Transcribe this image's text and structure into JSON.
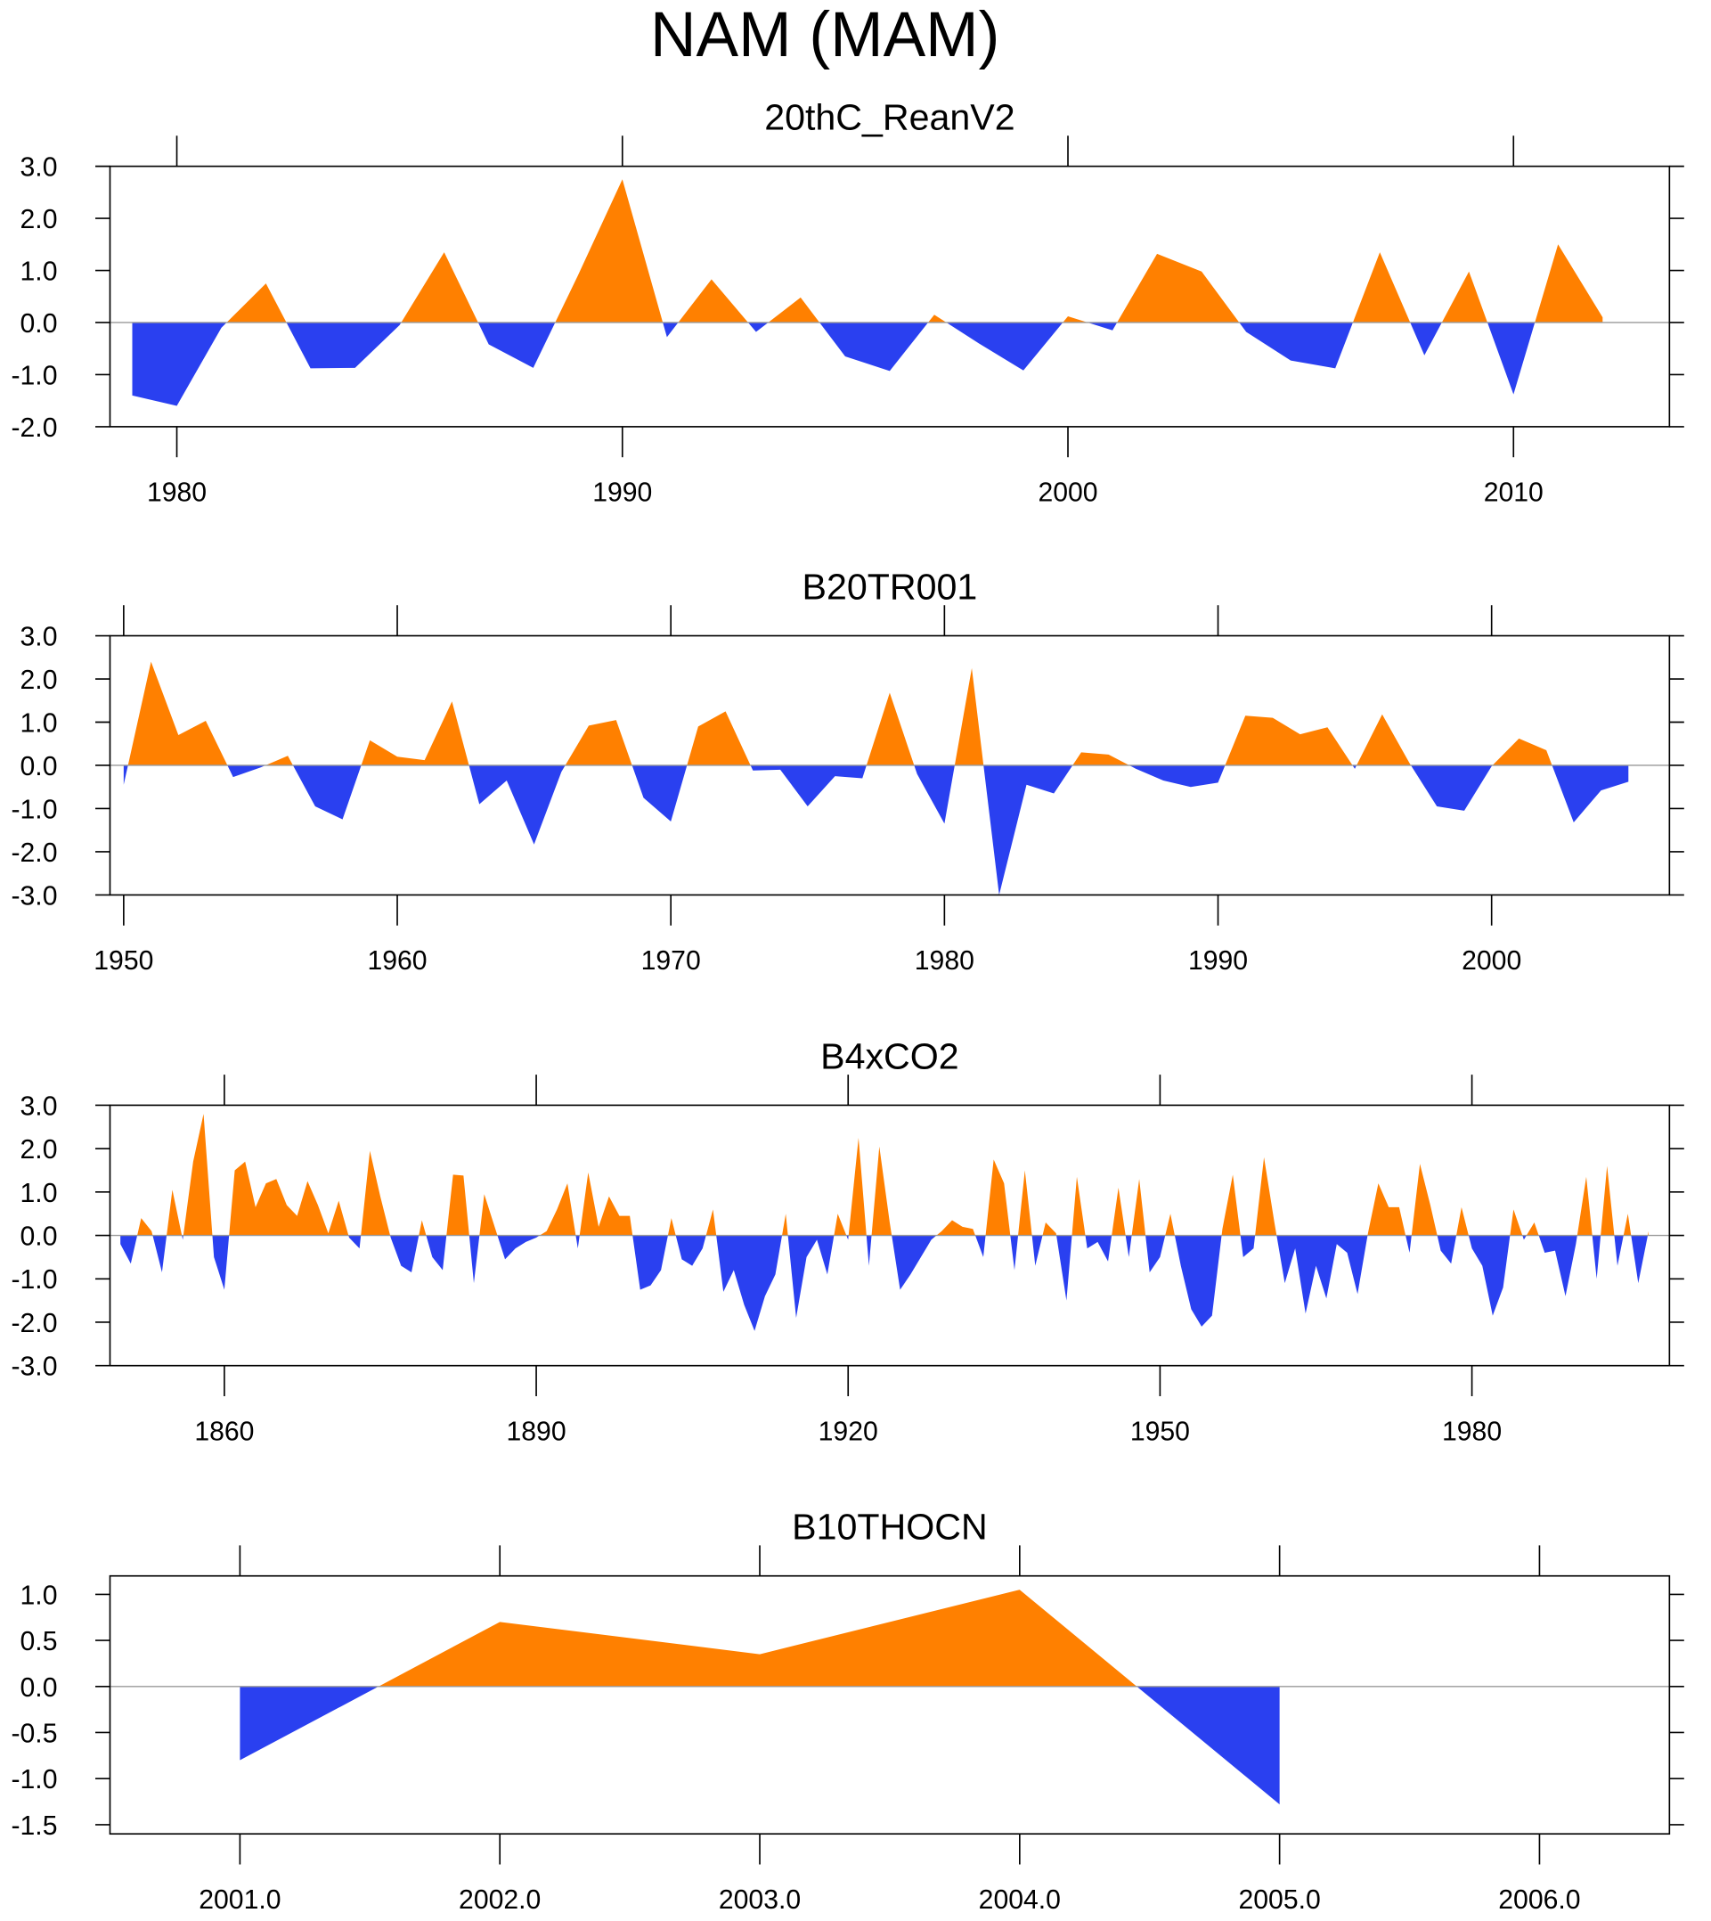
{
  "title": "NAM (MAM)",
  "chart_data": [
    {
      "type": "area",
      "title": "20thC_ReanV2",
      "positive_color": "#ff8000",
      "negative_color": "#2a40f0",
      "reference_line": 0,
      "x": [
        1979,
        1980,
        1981,
        1982,
        1983,
        1984,
        1985,
        1986,
        1987,
        1988,
        1989,
        1990,
        1991,
        1992,
        1993,
        1994,
        1995,
        1996,
        1997,
        1998,
        1999,
        2000,
        2001,
        2002,
        2003,
        2004,
        2005,
        2006,
        2007,
        2008,
        2009,
        2010,
        2011,
        2012
      ],
      "values": [
        -1.4,
        -1.6,
        -0.1,
        0.75,
        -0.88,
        -0.87,
        -0.05,
        1.35,
        -0.42,
        -0.87,
        0.9,
        2.75,
        -0.28,
        0.83,
        -0.18,
        0.48,
        -0.65,
        -0.93,
        0.15,
        -0.4,
        -0.92,
        0.12,
        -0.15,
        1.32,
        0.98,
        -0.18,
        -0.73,
        -0.88,
        1.35,
        -0.63,
        0.98,
        -1.38,
        1.5,
        0.1
      ],
      "xlim": [
        1978.5,
        2013.5
      ],
      "xticks": [
        1980,
        1990,
        2000,
        2010
      ],
      "ylim": [
        -2,
        3
      ],
      "yticks": [
        {
          "value": 3,
          "label": "3.0"
        },
        {
          "value": 2,
          "label": "2.0"
        },
        {
          "value": 1,
          "label": "1.0"
        },
        {
          "value": 0,
          "label": "0.0"
        },
        {
          "value": -1,
          "label": "-1.0"
        },
        {
          "value": -2,
          "label": "-2.0"
        }
      ]
    },
    {
      "type": "area",
      "title": "B20TR001",
      "positive_color": "#ff8000",
      "negative_color": "#2a40f0",
      "reference_line": 0,
      "x": [
        1950,
        1951,
        1952,
        1953,
        1954,
        1955,
        1956,
        1957,
        1958,
        1959,
        1960,
        1961,
        1962,
        1963,
        1964,
        1965,
        1966,
        1967,
        1968,
        1969,
        1970,
        1971,
        1972,
        1973,
        1974,
        1975,
        1976,
        1977,
        1978,
        1979,
        1980,
        1981,
        1982,
        1983,
        1984,
        1985,
        1986,
        1987,
        1988,
        1989,
        1990,
        1991,
        1992,
        1993,
        1994,
        1995,
        1996,
        1997,
        1998,
        1999,
        2000,
        2001,
        2002,
        2003,
        2004,
        2005
      ],
      "values": [
        -0.45,
        2.4,
        0.7,
        1.03,
        -0.27,
        -0.05,
        0.22,
        -0.95,
        -1.25,
        0.58,
        0.2,
        0.12,
        1.48,
        -0.9,
        -0.35,
        -1.83,
        -0.15,
        0.92,
        1.05,
        -0.75,
        -1.3,
        0.9,
        1.25,
        -0.12,
        -0.1,
        -0.95,
        -0.25,
        -0.3,
        1.68,
        -0.2,
        -1.35,
        2.25,
        -3.0,
        -0.45,
        -0.65,
        0.3,
        0.25,
        -0.08,
        -0.35,
        -0.5,
        -0.4,
        1.15,
        1.1,
        0.72,
        0.88,
        -0.08,
        1.18,
        0.05,
        -0.95,
        -1.05,
        -0.02,
        0.62,
        0.35,
        -1.32,
        -0.58,
        -0.38
      ],
      "xlim": [
        1949.5,
        2006.5
      ],
      "xticks": [
        1950,
        1960,
        1970,
        1980,
        1990,
        2000
      ],
      "ylim": [
        -3,
        3
      ],
      "yticks": [
        {
          "value": 3,
          "label": "3.0"
        },
        {
          "value": 2,
          "label": "2.0"
        },
        {
          "value": 1,
          "label": "1.0"
        },
        {
          "value": 0,
          "label": "0.0"
        },
        {
          "value": -1,
          "label": "-1.0"
        },
        {
          "value": -2,
          "label": "-2.0"
        },
        {
          "value": -3,
          "label": "-3.0"
        }
      ]
    },
    {
      "type": "area",
      "title": "B4xCO2",
      "positive_color": "#ff8000",
      "negative_color": "#2a40f0",
      "reference_line": 0,
      "x": [
        1850,
        1851,
        1852,
        1853,
        1854,
        1855,
        1856,
        1857,
        1858,
        1859,
        1860,
        1861,
        1862,
        1863,
        1864,
        1865,
        1866,
        1867,
        1868,
        1869,
        1870,
        1871,
        1872,
        1873,
        1874,
        1875,
        1876,
        1877,
        1878,
        1879,
        1880,
        1881,
        1882,
        1883,
        1884,
        1885,
        1886,
        1887,
        1888,
        1889,
        1890,
        1891,
        1892,
        1893,
        1894,
        1895,
        1896,
        1897,
        1898,
        1899,
        1900,
        1901,
        1902,
        1903,
        1904,
        1905,
        1906,
        1907,
        1908,
        1909,
        1910,
        1911,
        1912,
        1913,
        1914,
        1915,
        1916,
        1917,
        1918,
        1919,
        1920,
        1921,
        1922,
        1923,
        1924,
        1925,
        1926,
        1927,
        1928,
        1929,
        1930,
        1931,
        1932,
        1933,
        1934,
        1935,
        1936,
        1937,
        1938,
        1939,
        1940,
        1941,
        1942,
        1943,
        1944,
        1945,
        1946,
        1947,
        1948,
        1949,
        1950,
        1951,
        1952,
        1953,
        1954,
        1955,
        1956,
        1957,
        1958,
        1959,
        1960,
        1961,
        1962,
        1963,
        1964,
        1965,
        1966,
        1967,
        1968,
        1969,
        1970,
        1971,
        1972,
        1973,
        1974,
        1975,
        1976,
        1977,
        1978,
        1979,
        1980,
        1981,
        1982,
        1983,
        1984,
        1985,
        1986,
        1987,
        1988,
        1989,
        1990,
        1991,
        1992,
        1993,
        1994,
        1995,
        1996,
        1997
      ],
      "values": [
        -0.2,
        -0.65,
        0.4,
        0.1,
        -0.85,
        1.05,
        -0.1,
        1.7,
        2.8,
        -0.5,
        -1.25,
        1.5,
        1.7,
        0.65,
        1.2,
        1.3,
        0.7,
        0.45,
        1.25,
        0.7,
        0.05,
        0.8,
        -0.05,
        -0.3,
        1.95,
        0.9,
        -0.05,
        -0.7,
        -0.85,
        0.35,
        -0.5,
        -0.8,
        1.4,
        1.38,
        -1.1,
        0.95,
        0.2,
        -0.55,
        -0.3,
        -0.15,
        -0.05,
        0.1,
        0.6,
        1.2,
        -0.3,
        1.45,
        0.2,
        0.9,
        0.45,
        0.45,
        -1.25,
        -1.15,
        -0.8,
        0.4,
        -0.55,
        -0.7,
        -0.3,
        0.6,
        -1.3,
        -0.8,
        -1.6,
        -2.2,
        -1.4,
        -0.9,
        0.5,
        -1.9,
        -0.5,
        -0.1,
        -0.9,
        0.5,
        -0.1,
        2.25,
        -0.7,
        2.05,
        0.3,
        -1.25,
        -0.9,
        -0.5,
        -0.1,
        0.1,
        0.35,
        0.2,
        0.15,
        -0.5,
        1.75,
        1.2,
        -0.8,
        1.5,
        -0.7,
        0.3,
        0.05,
        -1.5,
        1.35,
        -0.3,
        -0.15,
        -0.6,
        1.1,
        -0.5,
        1.3,
        -0.85,
        -0.5,
        0.5,
        -0.7,
        -1.7,
        -2.1,
        -1.85,
        0.15,
        1.4,
        -0.5,
        -0.3,
        1.8,
        0.3,
        -1.1,
        -0.3,
        -1.8,
        -0.7,
        -1.45,
        -0.2,
        -0.4,
        -1.35,
        0.05,
        1.2,
        0.65,
        0.65,
        -0.4,
        1.65,
        0.7,
        -0.35,
        -0.65,
        0.65,
        -0.3,
        -0.7,
        -1.85,
        -1.2,
        0.6,
        -0.1,
        0.3,
        -0.4,
        -0.35,
        -1.4,
        -0.2,
        1.35,
        -1.0,
        1.6,
        -0.7,
        0.5,
        -1.1,
        0.1
      ],
      "xlim": [
        1849,
        1999
      ],
      "xticks": [
        1860,
        1890,
        1920,
        1950,
        1980
      ],
      "ylim": [
        -3,
        3
      ],
      "yticks": [
        {
          "value": 3,
          "label": "3.0"
        },
        {
          "value": 2,
          "label": "2.0"
        },
        {
          "value": 1,
          "label": "1.0"
        },
        {
          "value": 0,
          "label": "0.0"
        },
        {
          "value": -1,
          "label": "-1.0"
        },
        {
          "value": -2,
          "label": "-2.0"
        },
        {
          "value": -3,
          "label": "-3.0"
        }
      ]
    },
    {
      "type": "area",
      "title": "B10THOCN",
      "positive_color": "#ff8000",
      "negative_color": "#2a40f0",
      "reference_line": 0,
      "x": [
        2001,
        2002,
        2003,
        2004,
        2005
      ],
      "values": [
        -0.8,
        0.7,
        0.35,
        1.05,
        -1.28
      ],
      "xlim": [
        2000.5,
        2006.5
      ],
      "xticks": [
        {
          "value": 2001,
          "label": "2001.0"
        },
        {
          "value": 2002,
          "label": "2002.0"
        },
        {
          "value": 2003,
          "label": "2003.0"
        },
        {
          "value": 2004,
          "label": "2004.0"
        },
        {
          "value": 2005,
          "label": "2005.0"
        },
        {
          "value": 2006,
          "label": "2006.0"
        }
      ],
      "ylim": [
        -1.6,
        1.2
      ],
      "yticks": [
        {
          "value": 1,
          "label": "1.0"
        },
        {
          "value": 0.5,
          "label": "0.5"
        },
        {
          "value": 0,
          "label": "0.0"
        },
        {
          "value": -0.5,
          "label": "-0.5"
        },
        {
          "value": -1,
          "label": "-1.0"
        },
        {
          "value": -1.5,
          "label": "-1.5"
        }
      ]
    }
  ]
}
